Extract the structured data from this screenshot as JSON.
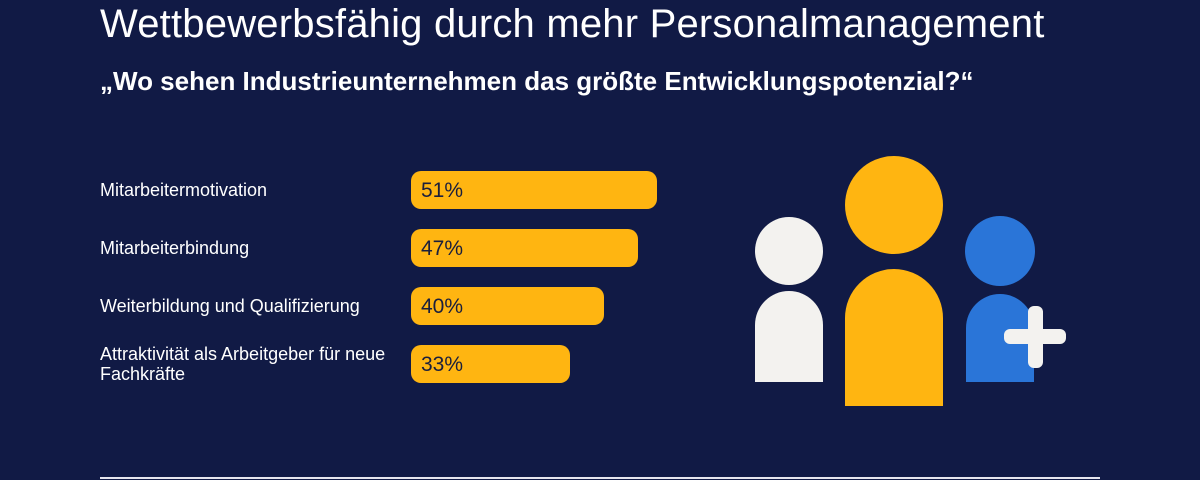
{
  "title": "Wettbewerbsfähig durch mehr Personalmanagement",
  "subtitle": "„Wo sehen Industrieunternehmen das größte Entwicklungspotenzial?“",
  "colors": {
    "background": "#111a45",
    "bar": "#ffb511",
    "person_left": "#f3f2ef",
    "person_center": "#ffb511",
    "person_right": "#2a75d8",
    "plus": "#f3f2ef"
  },
  "illustration": {
    "icon": "people-group-add-icon"
  },
  "chart_data": {
    "type": "bar",
    "orientation": "horizontal",
    "categories": [
      "Mitarbeitermotivation",
      "Mitarbeiterbindung",
      "Weiterbildung und Qualifizierung",
      "Attraktivität als Arbeitgeber für neue Fachkräfte"
    ],
    "values": [
      51,
      47,
      40,
      33
    ],
    "value_labels": [
      "51%",
      "47%",
      "40%",
      "33%"
    ],
    "unit": "%",
    "xlim": [
      0,
      100
    ],
    "grid": false,
    "legend": "none"
  }
}
